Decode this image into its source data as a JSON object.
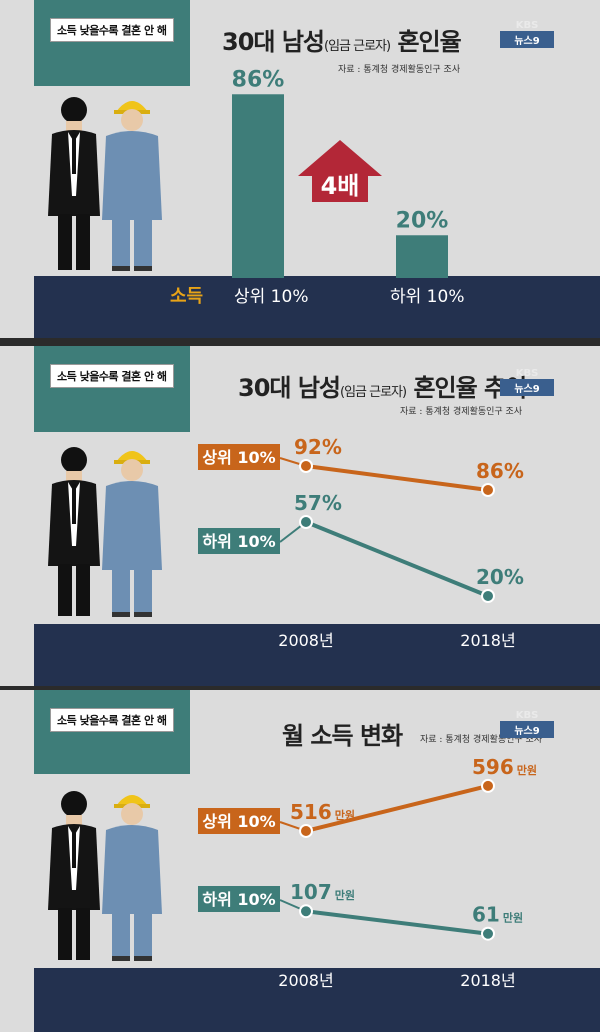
{
  "panels": [
    {
      "tag": "소득 낮을수록 결혼 안 해",
      "title_main": "30대 남성",
      "title_sub": "(임금 근로자)",
      "title_end": "혼인율",
      "source": "자료 : 통계청 경제활동인구 조사",
      "logo_top": "KBS",
      "logo_bottom": "뉴스9",
      "income_label": "소득",
      "badge": "4배",
      "colors": {
        "bar": "#3e7d79",
        "arrow": "#b32737",
        "income": "#e8a317"
      },
      "chart_data": {
        "type": "bar",
        "categories": [
          "상위 10%",
          "하위 10%"
        ],
        "values": [
          86,
          20
        ],
        "data_labels": [
          "86%",
          "20%"
        ],
        "ylim": [
          0,
          100
        ]
      }
    },
    {
      "tag": "소득 낮을수록 결혼 안 해",
      "title_main": "30대 남성",
      "title_sub": "(임금 근로자)",
      "title_end": "혼인율 추이",
      "source": "자료 : 통계청 경제활동인구 조사",
      "logo_top": "KBS",
      "logo_bottom": "뉴스9",
      "colors": {
        "top": "#c8651b",
        "bottom": "#3e7d79"
      },
      "chart_data": {
        "type": "line",
        "x": [
          "2008년",
          "2018년"
        ],
        "series": [
          {
            "name": "상위 10%",
            "values": [
              92,
              86
            ],
            "labels": [
              "92%",
              "86%"
            ]
          },
          {
            "name": "하위 10%",
            "values": [
              57,
              20
            ],
            "labels": [
              "57%",
              "20%"
            ]
          }
        ],
        "ylim": [
          0,
          100
        ]
      }
    },
    {
      "tag": "소득 낮을수록 결혼 안 해",
      "title_main": "월 소득 변화",
      "source": "자료 : 통계청 경제활동인구 조사",
      "logo_top": "KBS",
      "logo_bottom": "뉴스9",
      "colors": {
        "top": "#c8651b",
        "bottom": "#3e7d79"
      },
      "chart_data": {
        "type": "line",
        "x": [
          "2008년",
          "2018년"
        ],
        "unit": "만원",
        "series": [
          {
            "name": "상위 10%",
            "values": [
              516,
              596
            ],
            "labels": [
              "516",
              "596"
            ]
          },
          {
            "name": "하위 10%",
            "values": [
              107,
              61
            ],
            "labels": [
              "107",
              "61"
            ]
          }
        ]
      }
    }
  ]
}
